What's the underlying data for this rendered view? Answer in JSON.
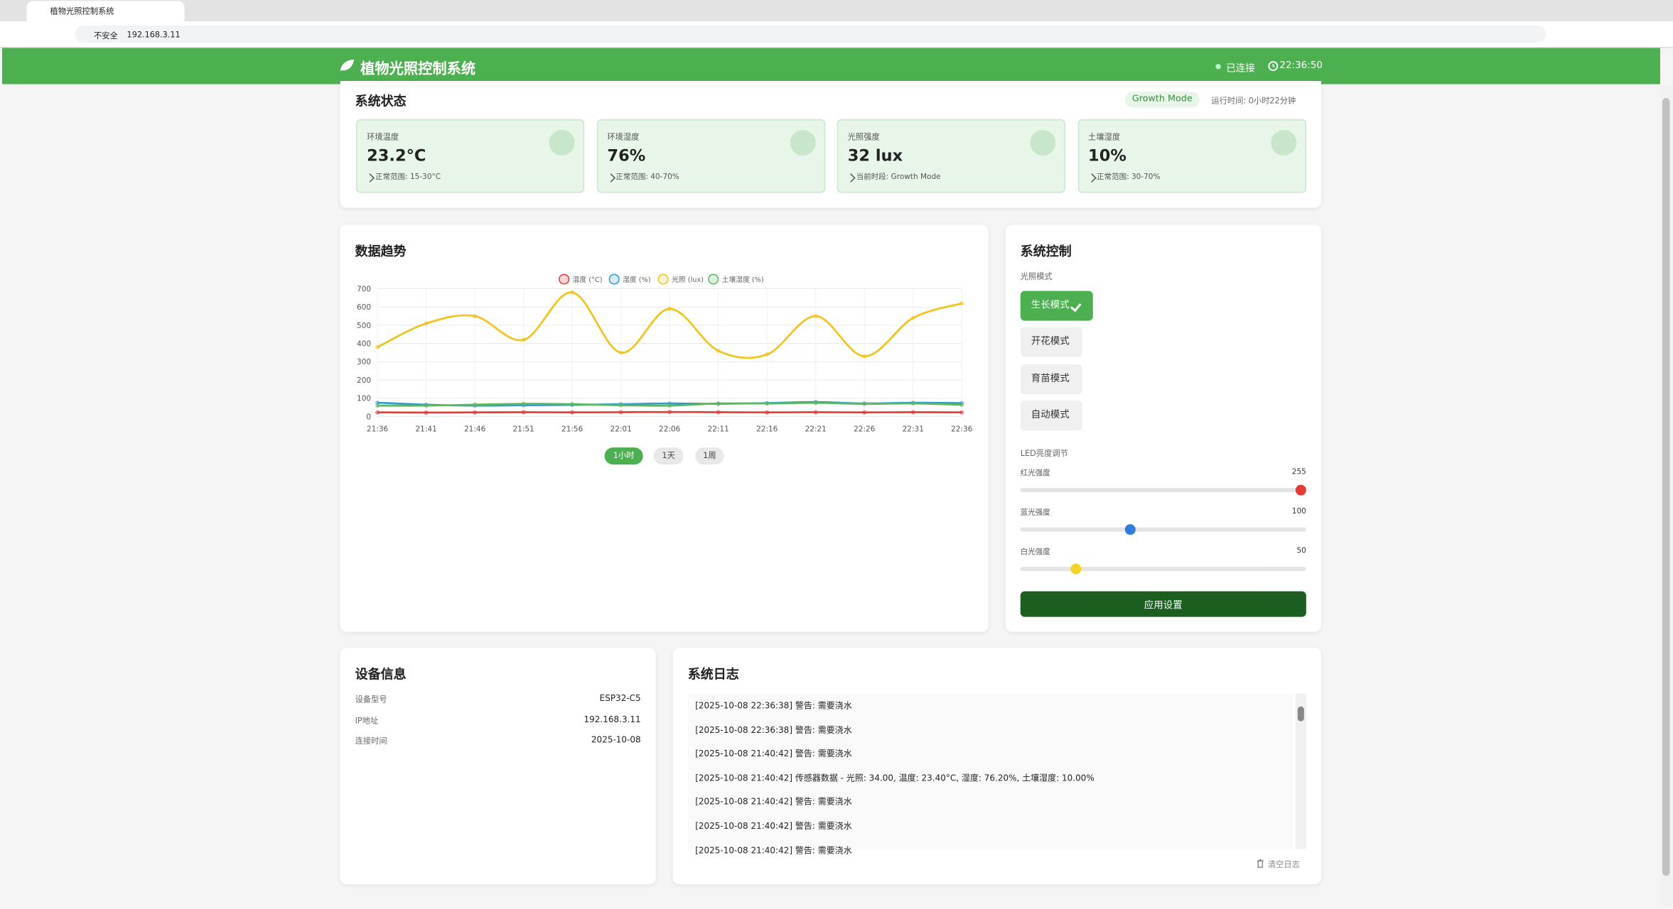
{
  "browser": {
    "tab_title": "植物光照控制系统",
    "security": "不安全",
    "url": "192.168.3.11"
  },
  "header": {
    "title": "植物光照控制系统",
    "status": "已连接",
    "time": "22:36:50"
  },
  "status": {
    "title": "系统状态",
    "mode_badge": "Growth Mode",
    "uptime": "运行时间: 0小时22分钟",
    "cards": [
      {
        "label": "环境温度",
        "value": "23.2°C",
        "note": "正常范围: 15-30°C"
      },
      {
        "label": "环境湿度",
        "value": "76%",
        "note": "正常范围: 40-70%"
      },
      {
        "label": "光照强度",
        "value": "32 lux",
        "note": "当前时段: Growth Mode"
      },
      {
        "label": "土壤湿度",
        "value": "10%",
        "note": "正常范围: 30-70%"
      }
    ]
  },
  "trend": {
    "title": "数据趋势",
    "ranges": [
      "1小时",
      "1天",
      "1周"
    ],
    "chart_data": {
      "type": "line",
      "categories": [
        "21:36",
        "21:41",
        "21:46",
        "21:51",
        "21:56",
        "22:01",
        "22:06",
        "22:11",
        "22:16",
        "22:21",
        "22:26",
        "22:31",
        "22:36"
      ],
      "series": [
        {
          "name": "温度 (°C)",
          "color": "#e53935",
          "values": [
            23,
            22,
            23,
            24,
            23,
            24,
            25,
            24,
            23,
            24,
            23,
            24,
            23
          ]
        },
        {
          "name": "湿度 (%)",
          "color": "#2e9bd6",
          "values": [
            76,
            65,
            60,
            62,
            64,
            68,
            72,
            70,
            74,
            80,
            72,
            76,
            74
          ]
        },
        {
          "name": "光照 (lux)",
          "color": "#f2c318",
          "values": [
            380,
            510,
            550,
            420,
            680,
            350,
            590,
            360,
            340,
            550,
            330,
            540,
            620
          ]
        },
        {
          "name": "土壤湿度 (%)",
          "color": "#5cb85c",
          "values": [
            60,
            60,
            65,
            70,
            68,
            62,
            60,
            72,
            72,
            75,
            70,
            72,
            65
          ]
        }
      ],
      "ylim": [
        0,
        700
      ],
      "yticks": [
        0,
        100,
        200,
        300,
        400,
        500,
        600,
        700
      ],
      "grid": true
    }
  },
  "control": {
    "title": "系统控制",
    "mode_label": "光照模式",
    "modes": [
      "生长模式",
      "开花模式",
      "育苗模式",
      "自动模式"
    ],
    "led_label": "LED亮度调节",
    "range": [
      0,
      255
    ],
    "sliders": [
      {
        "label": "红光强度",
        "value": 255,
        "color": "#e53935"
      },
      {
        "label": "蓝光强度",
        "value": 100,
        "color": "#2f7de1"
      },
      {
        "label": "白光强度",
        "value": 50,
        "color": "#f5d426"
      }
    ],
    "apply": "应用设置"
  },
  "device": {
    "title": "设备信息",
    "rows": [
      [
        "设备型号",
        "ESP32-C5"
      ],
      [
        "IP地址",
        "192.168.3.11"
      ],
      [
        "连接时间",
        "2025-10-08"
      ]
    ]
  },
  "log": {
    "title": "系统日志",
    "entries": [
      "[2025-10-08 22:36:38] 警告: 需要浇水",
      "[2025-10-08 22:36:38] 警告: 需要浇水",
      "[2025-10-08 21:40:42] 警告: 需要浇水",
      "[2025-10-08 21:40:42] 传感器数据 - 光照: 34.00, 温度: 23.40°C, 湿度: 76.20%, 土壤湿度: 10.00%",
      "[2025-10-08 21:40:42] 警告: 需要浇水",
      "[2025-10-08 21:40:42] 警告: 需要浇水",
      "[2025-10-08 21:40:42] 警告: 需要浇水"
    ],
    "clear": "清空日志"
  }
}
